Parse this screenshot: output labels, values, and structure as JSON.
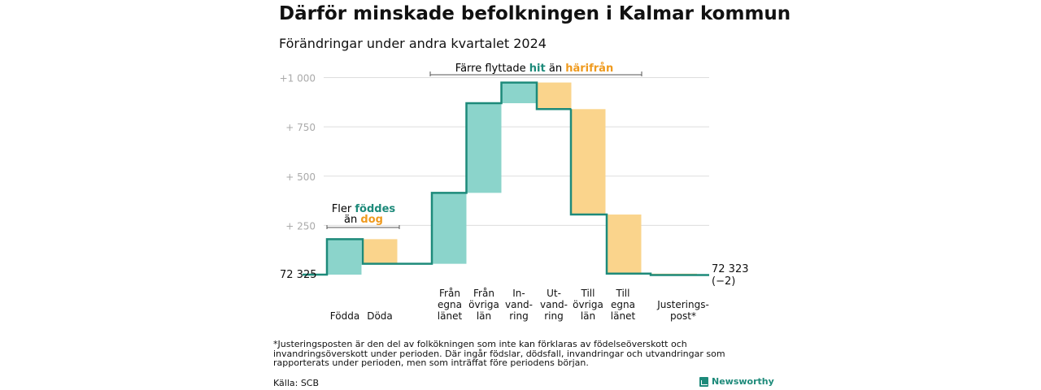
{
  "title": "Därför minskade befolkningen i Kalmar kommun",
  "subtitle": "Förändringar under andra kvartalet 2024",
  "footnote": "*Justeringsposten är den del av folkökningen som inte kan förklaras av födelseöverskott och invandringsöverskott under perioden. Där ingår födslar, dödsfall, invandringar och utvandringar som rapporterats under perioden, men som inträffat före periodens början.",
  "source": "Källa: SCB",
  "brand": "Newsworthy",
  "colors": {
    "increase": "#8bd4cb",
    "decrease": "#fad48c",
    "line": "#1d8a7a",
    "grid": "#dddddd",
    "tick": "#aaaaaa",
    "teal_text": "#1d8a7a",
    "orange_text": "#ef9a1e"
  },
  "annotations": {
    "birth": {
      "line1": "Fler",
      "teal_word": "föddes",
      "line2": "än",
      "orange_word": "dog"
    },
    "moves": {
      "prefix": "Färre flyttade",
      "teal_word": "hit",
      "middle": "än",
      "orange_word": "härifrån"
    }
  },
  "chart_data": {
    "type": "waterfall",
    "title": "Därför minskade befolkningen i Kalmar kommun",
    "subtitle": "Förändringar under andra kvartalet 2024",
    "start_value": 72325,
    "start_label": "72  325",
    "end_value": 72323,
    "end_label": "72 323",
    "end_change_label": "(−2)",
    "y_ticks": [
      "+1   000",
      "+  750",
      "+  500",
      "+  250"
    ],
    "y_tick_values": [
      1000,
      750,
      500,
      250
    ],
    "ylim": [
      0,
      1000
    ],
    "grid": true,
    "steps": [
      {
        "label": [
          "Födda"
        ],
        "from": 0,
        "to": 180,
        "kind": "increase"
      },
      {
        "label": [
          "Döda"
        ],
        "from": 180,
        "to": 55,
        "kind": "decrease"
      },
      {
        "label": [
          "Från",
          "egna",
          "länet"
        ],
        "from": 55,
        "to": 415,
        "kind": "increase"
      },
      {
        "label": [
          "Från",
          "övriga",
          "län"
        ],
        "from": 415,
        "to": 870,
        "kind": "increase"
      },
      {
        "label": [
          "In-",
          "vand-",
          "ring"
        ],
        "from": 870,
        "to": 975,
        "kind": "increase"
      },
      {
        "label": [
          "Ut-",
          "vand-",
          "ring"
        ],
        "from": 975,
        "to": 840,
        "kind": "decrease"
      },
      {
        "label": [
          "Till",
          "övriga",
          "län"
        ],
        "from": 840,
        "to": 305,
        "kind": "decrease"
      },
      {
        "label": [
          "Till",
          "egna",
          "länet"
        ],
        "from": 305,
        "to": 5,
        "kind": "decrease"
      },
      {
        "label": [
          "Justerings-",
          "post*"
        ],
        "from": 5,
        "to": -2,
        "kind": "decrease"
      }
    ]
  }
}
